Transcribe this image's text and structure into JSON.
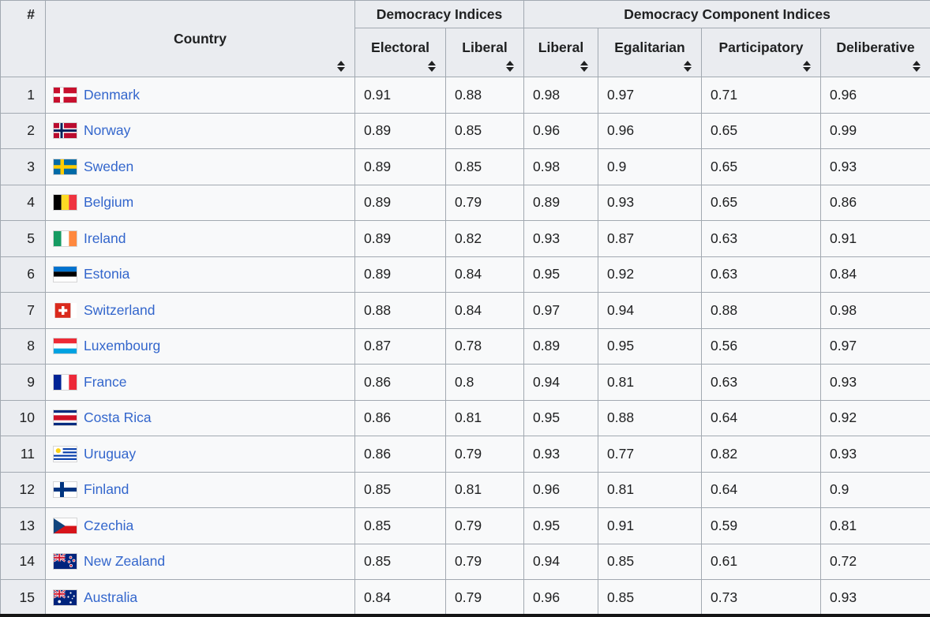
{
  "icons": {
    "sort_icon": "up-down-triangles"
  },
  "colors": {
    "link": "#3366cc",
    "header_bg": "#eaecf0",
    "cell_bg": "#f8f9fa",
    "border": "#a2a9b1",
    "text": "#202122",
    "bottom_bar": "#151515"
  },
  "table": {
    "header": {
      "rank": "#",
      "country": "Country",
      "group1": "Democracy Indices",
      "group2": "Democracy Component Indices",
      "sub": [
        "Electoral",
        "Liberal",
        "Liberal",
        "Egalitarian",
        "Participatory",
        "Deliberative"
      ]
    },
    "sub_keys": [
      "electoral",
      "liberal",
      "liberal-component",
      "egalitarian",
      "participatory",
      "deliberative"
    ],
    "rows": [
      {
        "rank": "1",
        "country": "Denmark",
        "flag": "dk",
        "values": [
          "0.91",
          "0.88",
          "0.98",
          "0.97",
          "0.71",
          "0.96"
        ]
      },
      {
        "rank": "2",
        "country": "Norway",
        "flag": "no",
        "values": [
          "0.89",
          "0.85",
          "0.96",
          "0.96",
          "0.65",
          "0.99"
        ]
      },
      {
        "rank": "3",
        "country": "Sweden",
        "flag": "se",
        "values": [
          "0.89",
          "0.85",
          "0.98",
          "0.9",
          "0.65",
          "0.93"
        ]
      },
      {
        "rank": "4",
        "country": "Belgium",
        "flag": "be",
        "values": [
          "0.89",
          "0.79",
          "0.89",
          "0.93",
          "0.65",
          "0.86"
        ]
      },
      {
        "rank": "5",
        "country": "Ireland",
        "flag": "ie",
        "values": [
          "0.89",
          "0.82",
          "0.93",
          "0.87",
          "0.63",
          "0.91"
        ]
      },
      {
        "rank": "6",
        "country": "Estonia",
        "flag": "ee",
        "values": [
          "0.89",
          "0.84",
          "0.95",
          "0.92",
          "0.63",
          "0.84"
        ]
      },
      {
        "rank": "7",
        "country": "Switzerland",
        "flag": "ch",
        "values": [
          "0.88",
          "0.84",
          "0.97",
          "0.94",
          "0.88",
          "0.98"
        ]
      },
      {
        "rank": "8",
        "country": "Luxembourg",
        "flag": "lu",
        "values": [
          "0.87",
          "0.78",
          "0.89",
          "0.95",
          "0.56",
          "0.97"
        ]
      },
      {
        "rank": "9",
        "country": "France",
        "flag": "fr",
        "values": [
          "0.86",
          "0.8",
          "0.94",
          "0.81",
          "0.63",
          "0.93"
        ]
      },
      {
        "rank": "10",
        "country": "Costa Rica",
        "flag": "cr",
        "values": [
          "0.86",
          "0.81",
          "0.95",
          "0.88",
          "0.64",
          "0.92"
        ]
      },
      {
        "rank": "11",
        "country": "Uruguay",
        "flag": "uy",
        "values": [
          "0.86",
          "0.79",
          "0.93",
          "0.77",
          "0.82",
          "0.93"
        ]
      },
      {
        "rank": "12",
        "country": "Finland",
        "flag": "fi",
        "values": [
          "0.85",
          "0.81",
          "0.96",
          "0.81",
          "0.64",
          "0.9"
        ]
      },
      {
        "rank": "13",
        "country": "Czechia",
        "flag": "cz",
        "values": [
          "0.85",
          "0.79",
          "0.95",
          "0.91",
          "0.59",
          "0.81"
        ]
      },
      {
        "rank": "14",
        "country": "New Zealand",
        "flag": "nz",
        "values": [
          "0.85",
          "0.79",
          "0.94",
          "0.85",
          "0.61",
          "0.72"
        ]
      },
      {
        "rank": "15",
        "country": "Australia",
        "flag": "au",
        "values": [
          "0.84",
          "0.79",
          "0.96",
          "0.85",
          "0.73",
          "0.93"
        ]
      }
    ]
  }
}
